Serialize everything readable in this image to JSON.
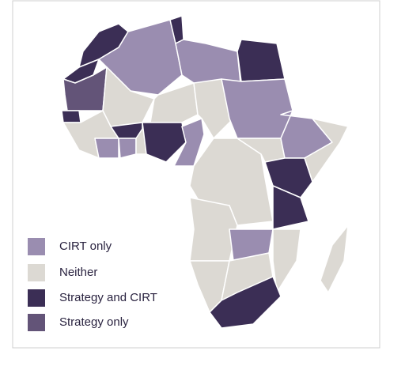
{
  "legend": {
    "items": [
      {
        "label": "CIRT only",
        "color": "#9a8db0"
      },
      {
        "label": "Neither",
        "color": "#dcd9d3"
      },
      {
        "label": "Strategy and CIRT",
        "color": "#3b2e55"
      },
      {
        "label": "Strategy only",
        "color": "#635478"
      }
    ]
  }
}
